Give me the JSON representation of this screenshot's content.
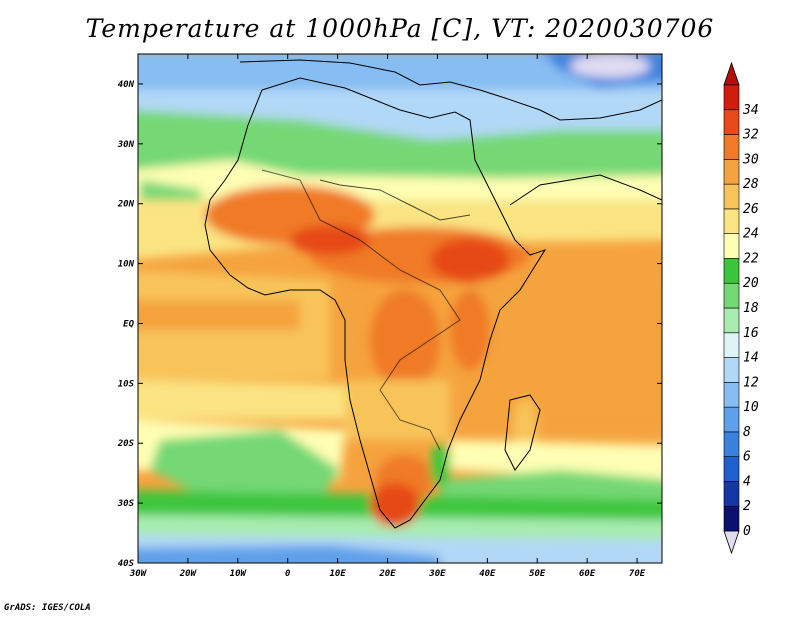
{
  "title": "Temperature at 1000hPa [C], VT: 2020030706",
  "credit": "GrADS: IGES/COLA",
  "map": {
    "lon_range": [
      -30,
      75
    ],
    "lat_range": [
      -40,
      45
    ],
    "lon_ticks": [
      {
        "value": -30,
        "label": "30W"
      },
      {
        "value": -20,
        "label": "20W"
      },
      {
        "value": -10,
        "label": "10W"
      },
      {
        "value": 0,
        "label": "0"
      },
      {
        "value": 10,
        "label": "10E"
      },
      {
        "value": 20,
        "label": "20E"
      },
      {
        "value": 30,
        "label": "30E"
      },
      {
        "value": 40,
        "label": "40E"
      },
      {
        "value": 50,
        "label": "50E"
      },
      {
        "value": 60,
        "label": "60E"
      },
      {
        "value": 70,
        "label": "70E"
      }
    ],
    "lat_ticks": [
      {
        "value": 40,
        "label": "40N"
      },
      {
        "value": 30,
        "label": "30N"
      },
      {
        "value": 20,
        "label": "20N"
      },
      {
        "value": 10,
        "label": "10N"
      },
      {
        "value": 0,
        "label": "EQ"
      },
      {
        "value": -10,
        "label": "10S"
      },
      {
        "value": -20,
        "label": "20S"
      },
      {
        "value": -30,
        "label": "30S"
      },
      {
        "value": -40,
        "label": "40S"
      }
    ]
  },
  "colorbar": {
    "levels": [
      "0",
      "2",
      "4",
      "6",
      "8",
      "10",
      "12",
      "14",
      "16",
      "18",
      "20",
      "22",
      "24",
      "26",
      "28",
      "30",
      "32",
      "34"
    ],
    "colors": [
      "#0c1070",
      "#1535a8",
      "#1f5fcf",
      "#3a82df",
      "#5ea0ea",
      "#86bdf2",
      "#b2d8f7",
      "#dff4f7",
      "#a8ecb0",
      "#74d875",
      "#3cc63c",
      "#fefeb4",
      "#fbe482",
      "#f8c45a",
      "#f5a33e",
      "#f07a28",
      "#e64a18",
      "#d01e0e"
    ],
    "below_color": "#e0dcf2",
    "above_color": "#b01008"
  }
}
